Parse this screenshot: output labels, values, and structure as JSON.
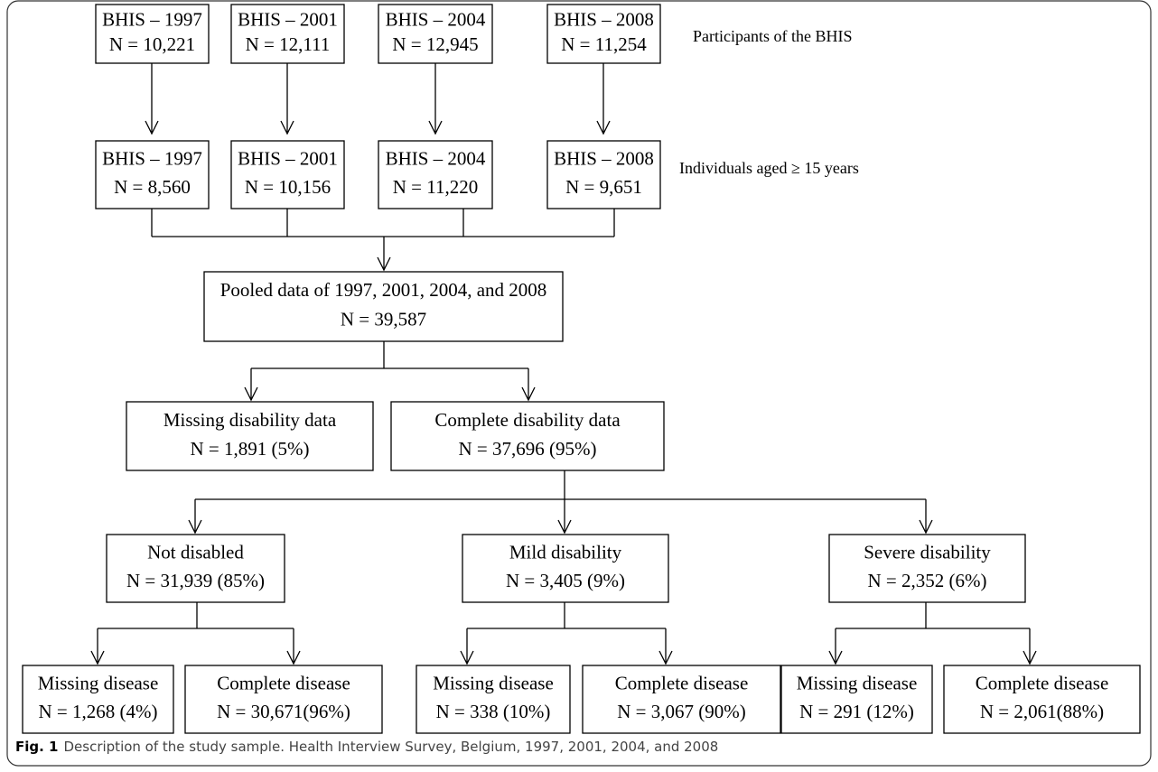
{
  "nodes": [
    {
      "title": "BHIS – 1997",
      "count": "N = 10,221"
    },
    {
      "title": "BHIS – 2001",
      "count": "N = 12,111"
    },
    {
      "title": "BHIS – 2004",
      "count": "N = 12,945"
    },
    {
      "title": "BHIS – 2008",
      "count": "N = 11,254"
    },
    {
      "title": "BHIS – 1997",
      "count": "N = 8,560"
    },
    {
      "title": "BHIS – 2001",
      "count": "N = 10,156"
    },
    {
      "title": "BHIS – 2004",
      "count": "N = 11,220"
    },
    {
      "title": "BHIS – 2008",
      "count": "N = 9,651"
    },
    {
      "title": "Pooled data of 1997, 2001, 2004, and 2008",
      "count": "N = 39,587"
    },
    {
      "title": "Missing disability data",
      "count": "N = 1,891 (5%)"
    },
    {
      "title": "Complete disability data",
      "count": "N = 37,696 (95%)"
    },
    {
      "title": "Not disabled",
      "count": "N = 31,939 (85%)"
    },
    {
      "title": "Mild disability",
      "count": "N = 3,405 (9%)"
    },
    {
      "title": "Severe disability",
      "count": "N = 2,352 (6%)"
    },
    {
      "title": "Missing disease",
      "count": "N = 1,268 (4%)"
    },
    {
      "title": "Complete disease",
      "count": "N = 30,671(96%)"
    },
    {
      "title": "Missing disease",
      "count": "N = 338 (10%)"
    },
    {
      "title": "Complete disease",
      "count": "N = 3,067 (90%)"
    },
    {
      "title": "Missing disease",
      "count": "N = 291 (12%)"
    },
    {
      "title": "Complete disease",
      "count": "N = 2,061(88%)"
    }
  ],
  "side_labels": [
    "Participants of the BHIS",
    "Individuals aged ≥ 15 years"
  ],
  "caption": {
    "label": "Fig. 1",
    "text": "Description of the study sample. Health Interview Survey, Belgium, 1997, 2001, 2004, and 2008"
  }
}
